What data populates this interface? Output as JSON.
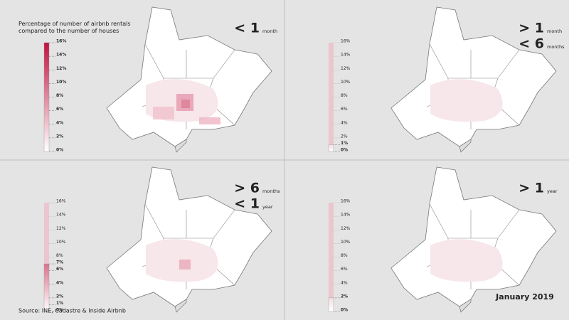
{
  "title": "Percentage of number of airbnb rentals compared to the number of houses",
  "source": "Source: INE, Cadastre & Inside Airbnb",
  "date": "January 2019",
  "panels": [
    {
      "label": [
        {
          "text": "< 1",
          "unit": "month"
        }
      ],
      "legend_max": 16,
      "legend_color": "#c0133f",
      "ticks": [
        {
          "value": 0,
          "label": "0%"
        },
        {
          "value": 2,
          "label": "2%"
        },
        {
          "value": 4,
          "label": "4%"
        },
        {
          "value": 6,
          "label": "6%"
        },
        {
          "value": 8,
          "label": "8%"
        },
        {
          "value": 10,
          "label": "10%"
        },
        {
          "value": 12,
          "label": "12%"
        },
        {
          "value": 14,
          "label": "14%"
        },
        {
          "value": 16,
          "label": "16%"
        }
      ]
    },
    {
      "label": [
        {
          "text": "> 1",
          "unit": "month"
        },
        {
          "text": "< 6",
          "unit": "months"
        }
      ],
      "legend_max": 1,
      "legend_color": "#f4dde2",
      "ticks": [
        {
          "value": 0,
          "label": "0%"
        },
        {
          "value": 1,
          "label": "1%"
        },
        {
          "value": 2,
          "label": "2%"
        },
        {
          "value": 4,
          "label": "4%"
        },
        {
          "value": 6,
          "label": "6%"
        },
        {
          "value": 8,
          "label": "8%"
        },
        {
          "value": 10,
          "label": "10%"
        },
        {
          "value": 12,
          "label": "12%"
        },
        {
          "value": 14,
          "label": "14%"
        },
        {
          "value": 16,
          "label": "16%"
        }
      ]
    },
    {
      "label": [
        {
          "text": "> 6",
          "unit": "months"
        },
        {
          "text": "< 1",
          "unit": "year"
        }
      ],
      "legend_max": 7,
      "legend_color": "#d9728c",
      "ticks": [
        {
          "value": 0,
          "label": "0%"
        },
        {
          "value": 1,
          "label": "1%"
        },
        {
          "value": 2,
          "label": "2%"
        },
        {
          "value": 4,
          "label": "4%"
        },
        {
          "value": 6,
          "label": "6%"
        },
        {
          "value": 7,
          "label": "7%"
        },
        {
          "value": 8,
          "label": "8%"
        },
        {
          "value": 10,
          "label": "10%"
        },
        {
          "value": 12,
          "label": "12%"
        },
        {
          "value": 14,
          "label": "14%"
        },
        {
          "value": 16,
          "label": "16%"
        }
      ]
    },
    {
      "label": [
        {
          "text": "> 1",
          "unit": "year"
        }
      ],
      "legend_max": 2,
      "legend_color": "#f4dde2",
      "ticks": [
        {
          "value": 0,
          "label": "0%"
        },
        {
          "value": 2,
          "label": "2%"
        },
        {
          "value": 4,
          "label": "4%"
        },
        {
          "value": 6,
          "label": "6%"
        },
        {
          "value": 8,
          "label": "8%"
        },
        {
          "value": 10,
          "label": "10%"
        },
        {
          "value": 12,
          "label": "12%"
        },
        {
          "value": 14,
          "label": "14%"
        },
        {
          "value": 16,
          "label": "16%"
        }
      ]
    }
  ]
}
